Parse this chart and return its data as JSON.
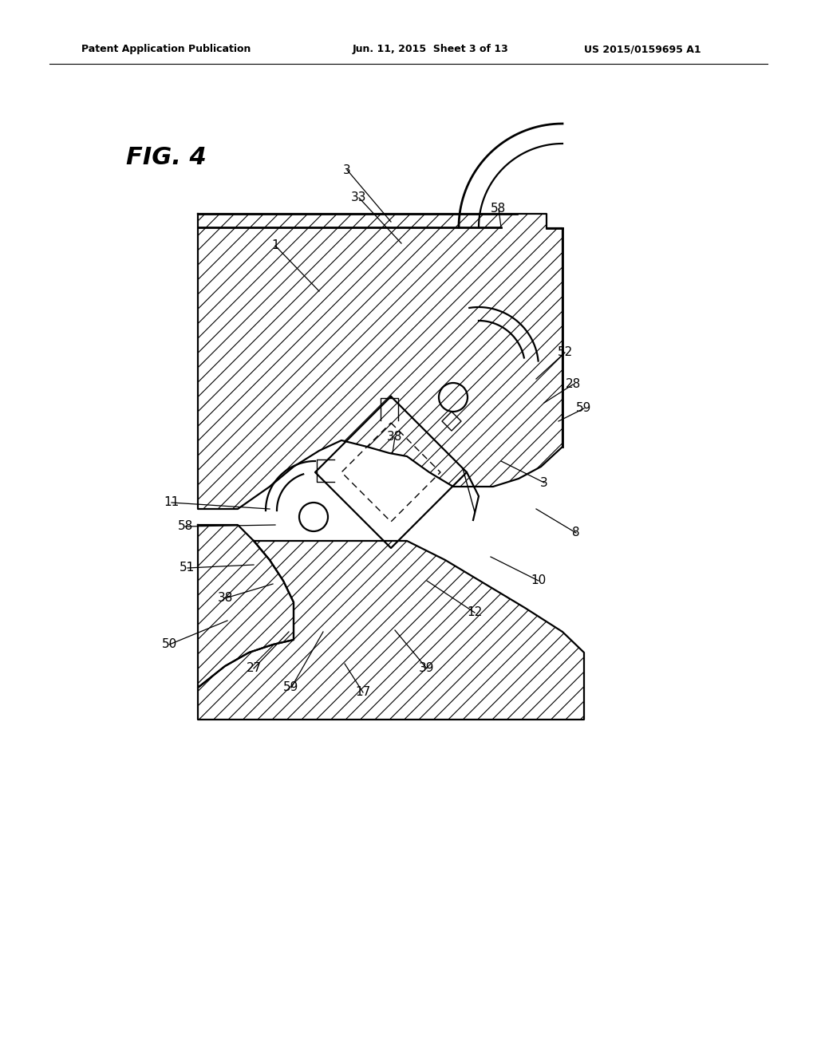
{
  "bg_color": "#ffffff",
  "header_left": "Patent Application Publication",
  "header_center": "Jun. 11, 2015  Sheet 3 of 13",
  "header_right": "US 2015/0159695 A1",
  "fig_label": "FIG. 4",
  "leaders": [
    [
      "1",
      345,
      308,
      400,
      365
    ],
    [
      "3",
      435,
      213,
      490,
      278
    ],
    [
      "33",
      450,
      248,
      503,
      305
    ],
    [
      "58",
      625,
      262,
      628,
      285
    ],
    [
      "52",
      708,
      442,
      672,
      475
    ],
    [
      "28",
      718,
      482,
      682,
      505
    ],
    [
      "59",
      732,
      512,
      700,
      528
    ],
    [
      "3",
      682,
      605,
      628,
      578
    ],
    [
      "38",
      495,
      548,
      492,
      568
    ],
    [
      "8",
      722,
      668,
      672,
      638
    ],
    [
      "11",
      215,
      630,
      338,
      638
    ],
    [
      "58",
      232,
      660,
      345,
      658
    ],
    [
      "51",
      235,
      712,
      318,
      708
    ],
    [
      "38",
      282,
      750,
      342,
      732
    ],
    [
      "50",
      212,
      808,
      285,
      778
    ],
    [
      "27",
      318,
      838,
      362,
      792
    ],
    [
      "59",
      365,
      862,
      405,
      792
    ],
    [
      "17",
      455,
      868,
      432,
      832
    ],
    [
      "39",
      535,
      838,
      495,
      790
    ],
    [
      "12",
      595,
      768,
      535,
      728
    ],
    [
      "10",
      675,
      728,
      615,
      698
    ]
  ]
}
